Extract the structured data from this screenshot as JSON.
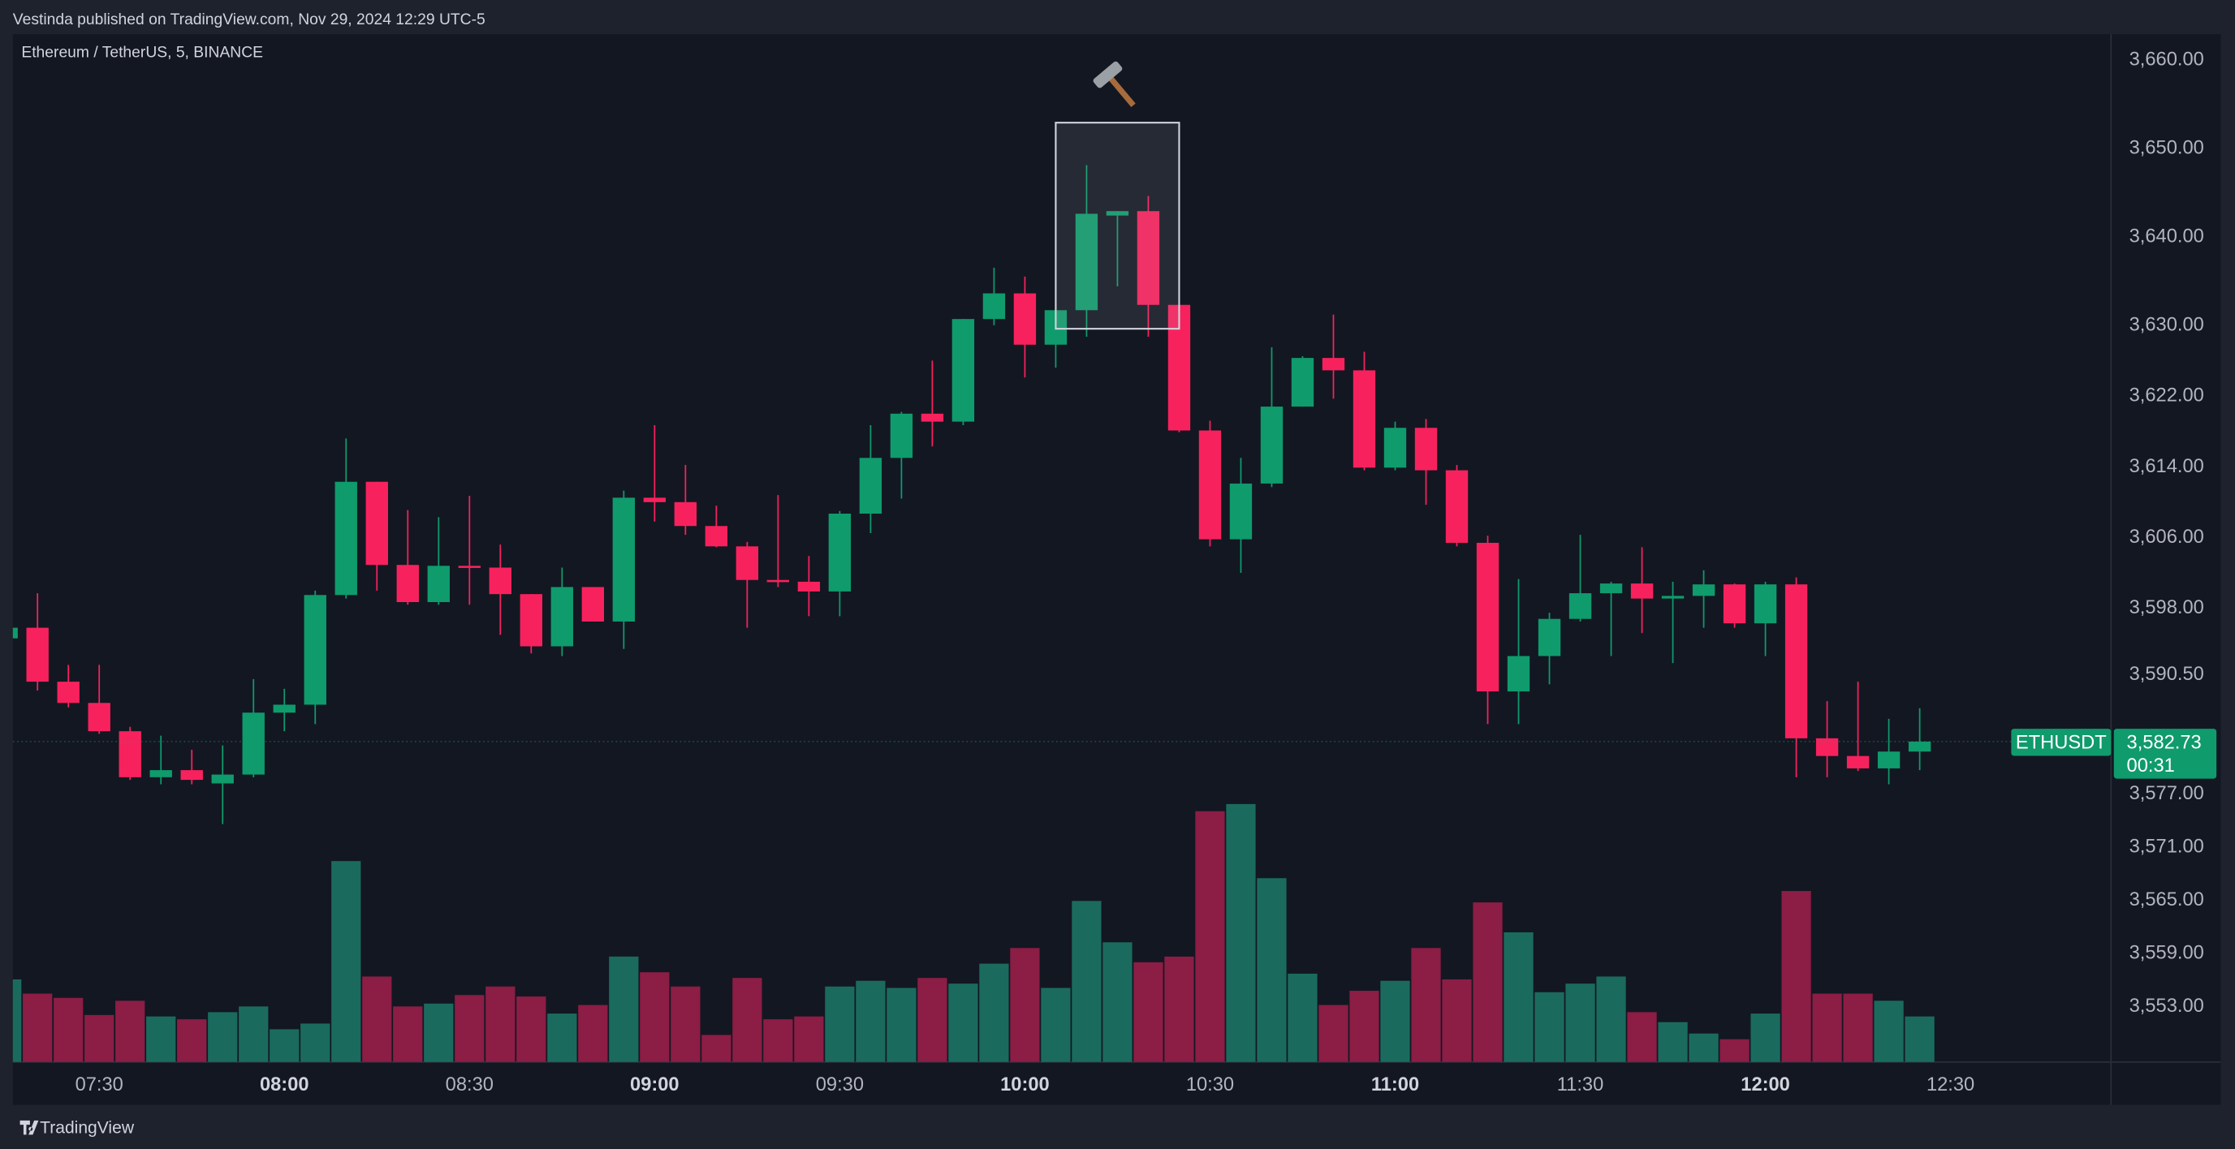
{
  "header": "Vestinda published on TradingView.com, Nov 29, 2024 12:29 UTC-5",
  "footer": "TradingView",
  "chart_data": {
    "type": "candlestick",
    "title": "Ethereum / TetherUS, 5, BINANCE",
    "symbol": "ETHUSDT",
    "countdown": "00:31",
    "last_price": {
      "value": 3582.73,
      "label": "3,582.73"
    },
    "up_color": "#0f9b6c",
    "down_color": "#f7225d",
    "volume_up_color": "#1a6b5e",
    "volume_down_color": "#8c1d45",
    "grid": false,
    "x": [
      "07:15",
      "07:20",
      "07:25",
      "07:30",
      "07:35",
      "07:40",
      "07:45",
      "07:50",
      "07:55",
      "08:00",
      "08:05",
      "08:10",
      "08:15",
      "08:20",
      "08:25",
      "08:30",
      "08:35",
      "08:40",
      "08:45",
      "08:50",
      "08:55",
      "09:00",
      "09:05",
      "09:10",
      "09:15",
      "09:20",
      "09:25",
      "09:30",
      "09:35",
      "09:40",
      "09:45",
      "09:50",
      "09:55",
      "10:00",
      "10:05",
      "10:10",
      "10:15",
      "10:20",
      "10:25",
      "10:30",
      "10:35",
      "10:40",
      "10:45",
      "10:50",
      "10:55",
      "11:00",
      "11:05",
      "11:10",
      "11:15",
      "11:20",
      "11:25",
      "11:30",
      "11:35",
      "11:40",
      "11:45",
      "11:50",
      "11:55",
      "12:00",
      "12:05",
      "12:10",
      "12:15",
      "12:20",
      "12:25"
    ],
    "open": [
      3594.4,
      3595.6,
      3589.5,
      3587.1,
      3583.9,
      3578.7,
      3579.5,
      3578.0,
      3579.0,
      3586.0,
      3586.9,
      3599.3,
      3612.1,
      3602.7,
      3598.5,
      3602.6,
      3602.4,
      3599.4,
      3593.5,
      3600.2,
      3596.3,
      3610.3,
      3609.8,
      3607.1,
      3604.8,
      3601.0,
      3600.8,
      3599.7,
      3608.5,
      3614.8,
      3619.8,
      3618.9,
      3630.5,
      3633.4,
      3627.6,
      3631.5,
      3642.2,
      3642.7,
      3632.1,
      3617.9,
      3605.6,
      3611.9,
      3620.6,
      3626.1,
      3624.7,
      3613.7,
      3618.2,
      3613.4,
      3605.2,
      3588.4,
      3592.4,
      3596.6,
      3599.5,
      3600.6,
      3598.9,
      3599.2,
      3600.5,
      3596.1,
      3600.5,
      3583.1,
      3581.1,
      3579.7,
      3581.6
    ],
    "high": [
      3596.2,
      3599.5,
      3591.4,
      3591.4,
      3584.4,
      3583.4,
      3581.8,
      3582.3,
      3589.8,
      3588.7,
      3599.8,
      3617.0,
      3612.1,
      3608.9,
      3608.1,
      3610.5,
      3605.0,
      3599.4,
      3602.4,
      3600.2,
      3611.1,
      3618.5,
      3614.0,
      3609.4,
      3605.3,
      3610.6,
      3603.7,
      3608.8,
      3618.5,
      3620.0,
      3625.8,
      3630.5,
      3636.3,
      3635.3,
      3633.7,
      3647.9,
      3642.7,
      3644.4,
      3632.1,
      3619.0,
      3614.8,
      3627.3,
      3626.3,
      3631.0,
      3626.8,
      3618.9,
      3619.2,
      3614.0,
      3606.0,
      3601.1,
      3597.3,
      3606.1,
      3600.8,
      3604.7,
      3600.8,
      3602.1,
      3600.6,
      3600.8,
      3601.3,
      3587.3,
      3589.5,
      3585.3,
      3586.5
    ],
    "low": [
      3594.0,
      3588.5,
      3586.6,
      3583.6,
      3578.4,
      3577.9,
      3577.9,
      3573.4,
      3578.7,
      3583.9,
      3584.7,
      3598.9,
      3599.8,
      3598.2,
      3598.2,
      3598.2,
      3594.8,
      3592.7,
      3592.4,
      3596.3,
      3593.2,
      3607.6,
      3606.1,
      3604.7,
      3595.6,
      3600.2,
      3596.9,
      3596.9,
      3606.3,
      3610.2,
      3616.1,
      3618.5,
      3629.8,
      3623.9,
      3625.0,
      3628.5,
      3634.2,
      3628.5,
      3617.7,
      3604.8,
      3601.8,
      3611.5,
      3620.6,
      3621.5,
      3613.4,
      3613.4,
      3609.5,
      3604.8,
      3584.7,
      3584.7,
      3589.2,
      3596.3,
      3592.4,
      3595.0,
      3591.6,
      3595.6,
      3595.6,
      3592.4,
      3578.7,
      3578.7,
      3579.4,
      3577.9,
      3579.5
    ],
    "close": [
      3595.6,
      3589.5,
      3587.1,
      3583.9,
      3578.7,
      3579.5,
      3578.4,
      3579.0,
      3586.0,
      3586.9,
      3599.3,
      3612.1,
      3602.7,
      3598.5,
      3602.6,
      3602.4,
      3599.4,
      3593.5,
      3600.2,
      3596.3,
      3610.3,
      3609.8,
      3607.1,
      3604.8,
      3601.0,
      3600.8,
      3599.7,
      3608.5,
      3614.8,
      3619.8,
      3618.9,
      3630.5,
      3633.4,
      3627.6,
      3631.5,
      3642.4,
      3642.7,
      3632.1,
      3617.9,
      3605.6,
      3611.9,
      3620.6,
      3626.1,
      3624.7,
      3613.7,
      3618.2,
      3613.4,
      3605.2,
      3588.4,
      3592.4,
      3596.6,
      3599.5,
      3600.6,
      3598.9,
      3599.2,
      3600.5,
      3596.1,
      3600.5,
      3583.1,
      3581.1,
      3579.7,
      3581.6,
      3582.73
    ],
    "volume": [
      58,
      48,
      45,
      33,
      43,
      32,
      30,
      35,
      39,
      23,
      27,
      141,
      60,
      39,
      41,
      47,
      53,
      46,
      34,
      40,
      74,
      63,
      53,
      19,
      59,
      30,
      32,
      53,
      57,
      52,
      59,
      55,
      69,
      80,
      52,
      113,
      84,
      70,
      74,
      176,
      181,
      129,
      62,
      40,
      50,
      57,
      80,
      58,
      112,
      91,
      49,
      55,
      60,
      35,
      28,
      20,
      16,
      34,
      120,
      48,
      48,
      43,
      32
    ],
    "box": {
      "x": [
        "10:05",
        "10:25"
      ],
      "y": [
        3629.4,
        3652.7
      ]
    },
    "xlim": [
      "07:16",
      "12:56"
    ],
    "xticks": [
      "07:30",
      "08:00",
      "08:30",
      "09:00",
      "09:30",
      "10:00",
      "10:30",
      "11:00",
      "11:30",
      "12:00",
      "12:30"
    ],
    "ylim": [
      3546.5,
      3662.7
    ],
    "yticks": [
      {
        "value": 3660,
        "label": "3,660.00"
      },
      {
        "value": 3650,
        "label": "3,650.00"
      },
      {
        "value": 3640,
        "label": "3,640.00"
      },
      {
        "value": 3630,
        "label": "3,630.00"
      },
      {
        "value": 3622,
        "label": "3,622.00"
      },
      {
        "value": 3614,
        "label": "3,614.00"
      },
      {
        "value": 3606,
        "label": "3,606.00"
      },
      {
        "value": 3598,
        "label": "3,598.00"
      },
      {
        "value": 3590.5,
        "label": "3,590.50"
      },
      {
        "value": 3577,
        "label": "3,577.00"
      },
      {
        "value": 3571,
        "label": "3,571.00"
      },
      {
        "value": 3565,
        "label": "3,565.00"
      },
      {
        "value": 3559,
        "label": "3,559.00"
      },
      {
        "value": 3553,
        "label": "3,553.00"
      }
    ]
  }
}
